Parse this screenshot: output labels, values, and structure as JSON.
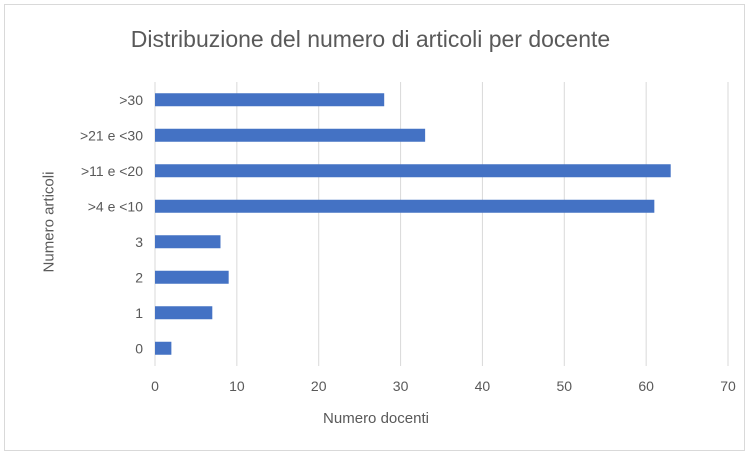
{
  "chart_data": {
    "type": "bar",
    "orientation": "horizontal",
    "title": "Distribuzione del numero di articoli per docente",
    "xlabel": "Numero docenti",
    "ylabel": "Numero articoli",
    "categories": [
      "0",
      "1",
      "2",
      "3",
      ">4 e <10",
      ">11 e <20",
      ">21 e <30",
      ">30"
    ],
    "values": [
      2,
      7,
      9,
      8,
      61,
      63,
      33,
      28
    ],
    "xlim": [
      0,
      70
    ],
    "xticks": [
      0,
      10,
      20,
      30,
      40,
      50,
      60,
      70
    ],
    "grid": "vertical",
    "legend": "none",
    "bar_color": "#4472C4",
    "grid_color": "#d9d9d9"
  }
}
